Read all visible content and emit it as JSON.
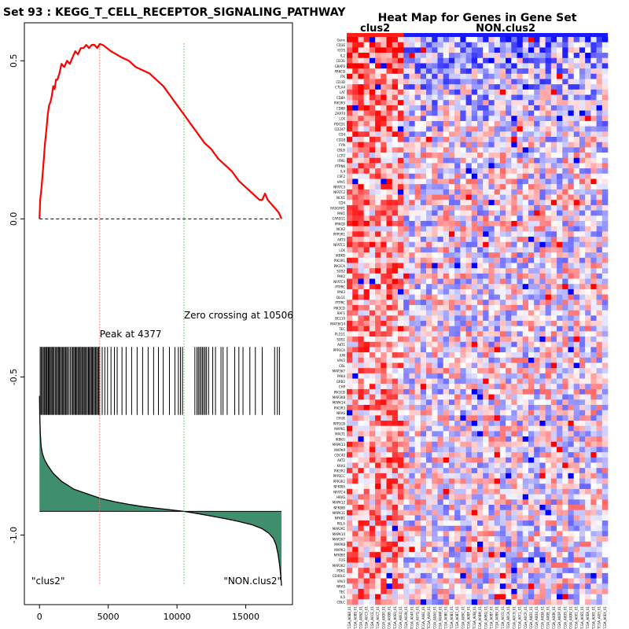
{
  "chart_data": [
    {
      "type": "line",
      "title": "Set  93 : KEGG_T_CELL_RECEPTOR_SIGNALING_PATHWAY",
      "xlabel": "",
      "ylabel": "",
      "xlim": [
        -1100,
        18400
      ],
      "ylim": [
        -1.22,
        0.62
      ],
      "x_ticks": [
        0,
        5000,
        10000,
        15000
      ],
      "y_ticks": [
        0.5,
        0.0,
        -0.5,
        -1.0
      ],
      "y_tick_labels": [
        "0.5",
        "0.0",
        "-0.5",
        "-1.0"
      ],
      "series": [
        {
          "name": "Running enrichment score",
          "color": "#ff0000",
          "x": [
            0,
            50,
            150,
            300,
            400,
            500,
            600,
            700,
            800,
            900,
            1000,
            1100,
            1200,
            1300,
            1450,
            1600,
            1800,
            2000,
            2200,
            2400,
            2600,
            2800,
            3000,
            3200,
            3400,
            3600,
            3800,
            4000,
            4200,
            4377,
            4600,
            4900,
            5200,
            5600,
            6000,
            6500,
            7000,
            7500,
            8000,
            8500,
            9000,
            9500,
            10000,
            10506,
            11000,
            11500,
            12000,
            12500,
            13000,
            13500,
            14000,
            14500,
            15000,
            15500,
            16000,
            16200,
            16400,
            16600,
            16800,
            17000,
            17200,
            17400,
            17600
          ],
          "y": [
            0.0,
            0.06,
            0.1,
            0.18,
            0.24,
            0.28,
            0.33,
            0.36,
            0.37,
            0.39,
            0.42,
            0.41,
            0.44,
            0.44,
            0.46,
            0.49,
            0.48,
            0.5,
            0.49,
            0.51,
            0.53,
            0.52,
            0.54,
            0.54,
            0.55,
            0.54,
            0.55,
            0.55,
            0.54,
            0.553,
            0.55,
            0.54,
            0.53,
            0.52,
            0.51,
            0.5,
            0.48,
            0.47,
            0.46,
            0.44,
            0.42,
            0.39,
            0.36,
            0.33,
            0.3,
            0.27,
            0.24,
            0.22,
            0.19,
            0.17,
            0.15,
            0.12,
            0.1,
            0.08,
            0.06,
            0.06,
            0.08,
            0.06,
            0.05,
            0.04,
            0.03,
            0.02,
            0.0
          ]
        }
      ],
      "peak": {
        "x": 4377,
        "label": "Peak at 4377"
      },
      "zero_crossing": {
        "x": 10506,
        "label": "Zero crossing at 10506"
      },
      "hit_band": {
        "y_top": -0.405,
        "y_bottom": -0.62
      },
      "hits": [
        50,
        120,
        200,
        280,
        350,
        430,
        500,
        560,
        640,
        700,
        780,
        850,
        920,
        1000,
        1060,
        1150,
        1230,
        1300,
        1380,
        1450,
        1520,
        1600,
        1680,
        1750,
        1820,
        1900,
        1980,
        2050,
        2150,
        2250,
        2350,
        2430,
        2500,
        2580,
        2650,
        2720,
        2800,
        2870,
        2950,
        3020,
        3100,
        3180,
        3250,
        3320,
        3400,
        3480,
        3560,
        3630,
        3700,
        3780,
        3850,
        3920,
        4000,
        4080,
        4150,
        4230,
        4300,
        4377,
        4560,
        4750,
        4950,
        5200,
        5450,
        5650,
        6000,
        6300,
        6700,
        7100,
        7500,
        7900,
        8300,
        8650,
        9000,
        9450,
        9850,
        10100,
        10250,
        10400,
        11300,
        11450,
        11550,
        11650,
        11750,
        11850,
        11950,
        12050,
        12150,
        12300,
        12600,
        12800,
        13200,
        13350,
        13650,
        14200,
        14500,
        14800,
        15300,
        15700,
        16200,
        17100,
        17300,
        17450
      ],
      "ranked_metric": {
        "baseline_y": -0.925,
        "color": "#3f8f6f",
        "x": [
          0,
          20,
          60,
          120,
          200,
          350,
          600,
          1000,
          1600,
          2500,
          3500,
          4500,
          5500,
          6500,
          7500,
          8500,
          9500,
          10506,
          11500,
          12500,
          13500,
          14500,
          15500,
          16200,
          16700,
          17000,
          17200,
          17350,
          17450,
          17550,
          17600
        ],
        "y": [
          -0.56,
          -0.62,
          -0.68,
          -0.72,
          -0.74,
          -0.76,
          -0.78,
          -0.805,
          -0.83,
          -0.855,
          -0.87,
          -0.885,
          -0.895,
          -0.903,
          -0.91,
          -0.915,
          -0.92,
          -0.925,
          -0.932,
          -0.94,
          -0.948,
          -0.957,
          -0.968,
          -0.98,
          -0.995,
          -1.01,
          -1.03,
          -1.06,
          -1.09,
          -1.13,
          -1.16
        ]
      },
      "annotations": [
        {
          "text": "\"clus2\"",
          "position": "bottom-left"
        },
        {
          "text": "\"NON.clus2\"",
          "position": "bottom-right"
        }
      ]
    },
    {
      "type": "heatmap",
      "title": "Heat Map for Genes in Gene Set",
      "groups": [
        {
          "label": "clus2",
          "color": "#ff2020",
          "n_samples": 10
        },
        {
          "label": "NON.clus2",
          "color": "#1a1aff",
          "n_samples": 36
        }
      ],
      "genes": [
        "Gene",
        "CD3E",
        "ICOS",
        "IL2",
        "CD3G",
        "GRAP2",
        "PRKCQ",
        "ITK",
        "CD3D",
        "CTLA4",
        "LAT",
        "CD8A",
        "PIK3R5",
        "CD8B",
        "ZAP70",
        "LCK",
        "PDCD1",
        "CD247",
        "CD4",
        "CD28",
        "FYN",
        "CBLB",
        "LCP2",
        "IFNG",
        "PTPN6",
        "IL4",
        "CSF2",
        "VAV1",
        "NFATC3",
        "NFATC2",
        "NCK1",
        "CD4",
        "RASGRP1",
        "PAK1",
        "CARD11",
        "PRKCB",
        "NCK2",
        "PPP3R1",
        "AKT3",
        "NFATC1",
        "LCK",
        "IKBKB",
        "PIK3R1",
        "PIK3CA",
        "SOS2",
        "PAK2",
        "NFATC4",
        "PTPRC",
        "PAK3",
        "DLG1",
        "PTPRC",
        "PIK3CD",
        "RAF1",
        "BCL10",
        "MAP3K14",
        "TEC",
        "PLCG1",
        "SOS1",
        "AKT1",
        "PPP3CA",
        "JUN",
        "VAV2",
        "CBL",
        "MAP3K7",
        "PAK4",
        "GRB2",
        "CHP",
        "PIK3CB",
        "MAP3K8",
        "MAPK14",
        "PIK3R3",
        "NRAS",
        "CHUK",
        "PPP3CB",
        "MAPK1",
        "MALT1",
        "IKBKG",
        "MAPK13",
        "MAPK9",
        "CDC42",
        "AKT2",
        "KRAS",
        "PIK3R2",
        "PPP3CC",
        "PPP3R2",
        "NFKBIA",
        "NFATC4",
        "HRAS",
        "MAPK12",
        "NFKBIB",
        "MAPK11",
        "NFKB1",
        "RELA",
        "MAP2K1",
        "MAPK10",
        "MAP2K7",
        "MAPK8",
        "MAPK3",
        "NFKBIE",
        "FOS",
        "MAP2K2",
        "PDK1",
        "CD40LG",
        "VAV3",
        "NRAS",
        "TEC",
        "IL5",
        "CBLC"
      ],
      "samples": [
        "TCGA_A0B8_01",
        "TCGA_A0BS_01",
        "TCGA_A0BZ_01",
        "TCGA_A0C3_01",
        "TCGA_A0CE_01",
        "TCGA_A0CT_01",
        "TCGA_A0D0_01",
        "TCGA_A0DB_01",
        "TCGA_A0E0_01",
        "TCGA_A0EQ_01",
        "TCGA_A03N_01",
        "TCGA_A04P_01",
        "TCGA_A07Q_01",
        "TCGA_A08L_01",
        "TCGA_A09I_01",
        "TCGA_A0AU_01",
        "TCGA_A0AW_01",
        "TCGA_A0B0_01",
        "TCGA_A0B3_01",
        "TCGA_A0B7_01",
        "TCGA_A0BC_01",
        "TCGA_A0BF_01",
        "TCGA_A0BJ_01",
        "TCGA_A0BM_01",
        "TCGA_A0BQ_01",
        "TCGA_A0BT_01",
        "TCGA_A0BV_01",
        "TCGA_A0C0_01",
        "TCGA_A0CA_01",
        "TCGA_A0CH_01",
        "TCGA_A0CL_01",
        "TCGA_A0CR_01",
        "TCGA_A0D1_01",
        "TCGA_A0D4_01",
        "TCGA_A0DA_01",
        "TCGA_A0DE_01",
        "TCGA_A0DK_01",
        "TCGA_A0DP_01",
        "TCGA_A0DS_01",
        "TCGA_A0DV_01",
        "TCGA_A0E1_01",
        "TCGA_A0E5_01",
        "TCGA_A0EA_01",
        "TCGA_A0EE_01",
        "TCGA_A0EI_01",
        "TCGA_A0EX_01"
      ],
      "color_scale": [
        "#0000ff",
        "#ffffff",
        "#ff0000"
      ]
    }
  ]
}
